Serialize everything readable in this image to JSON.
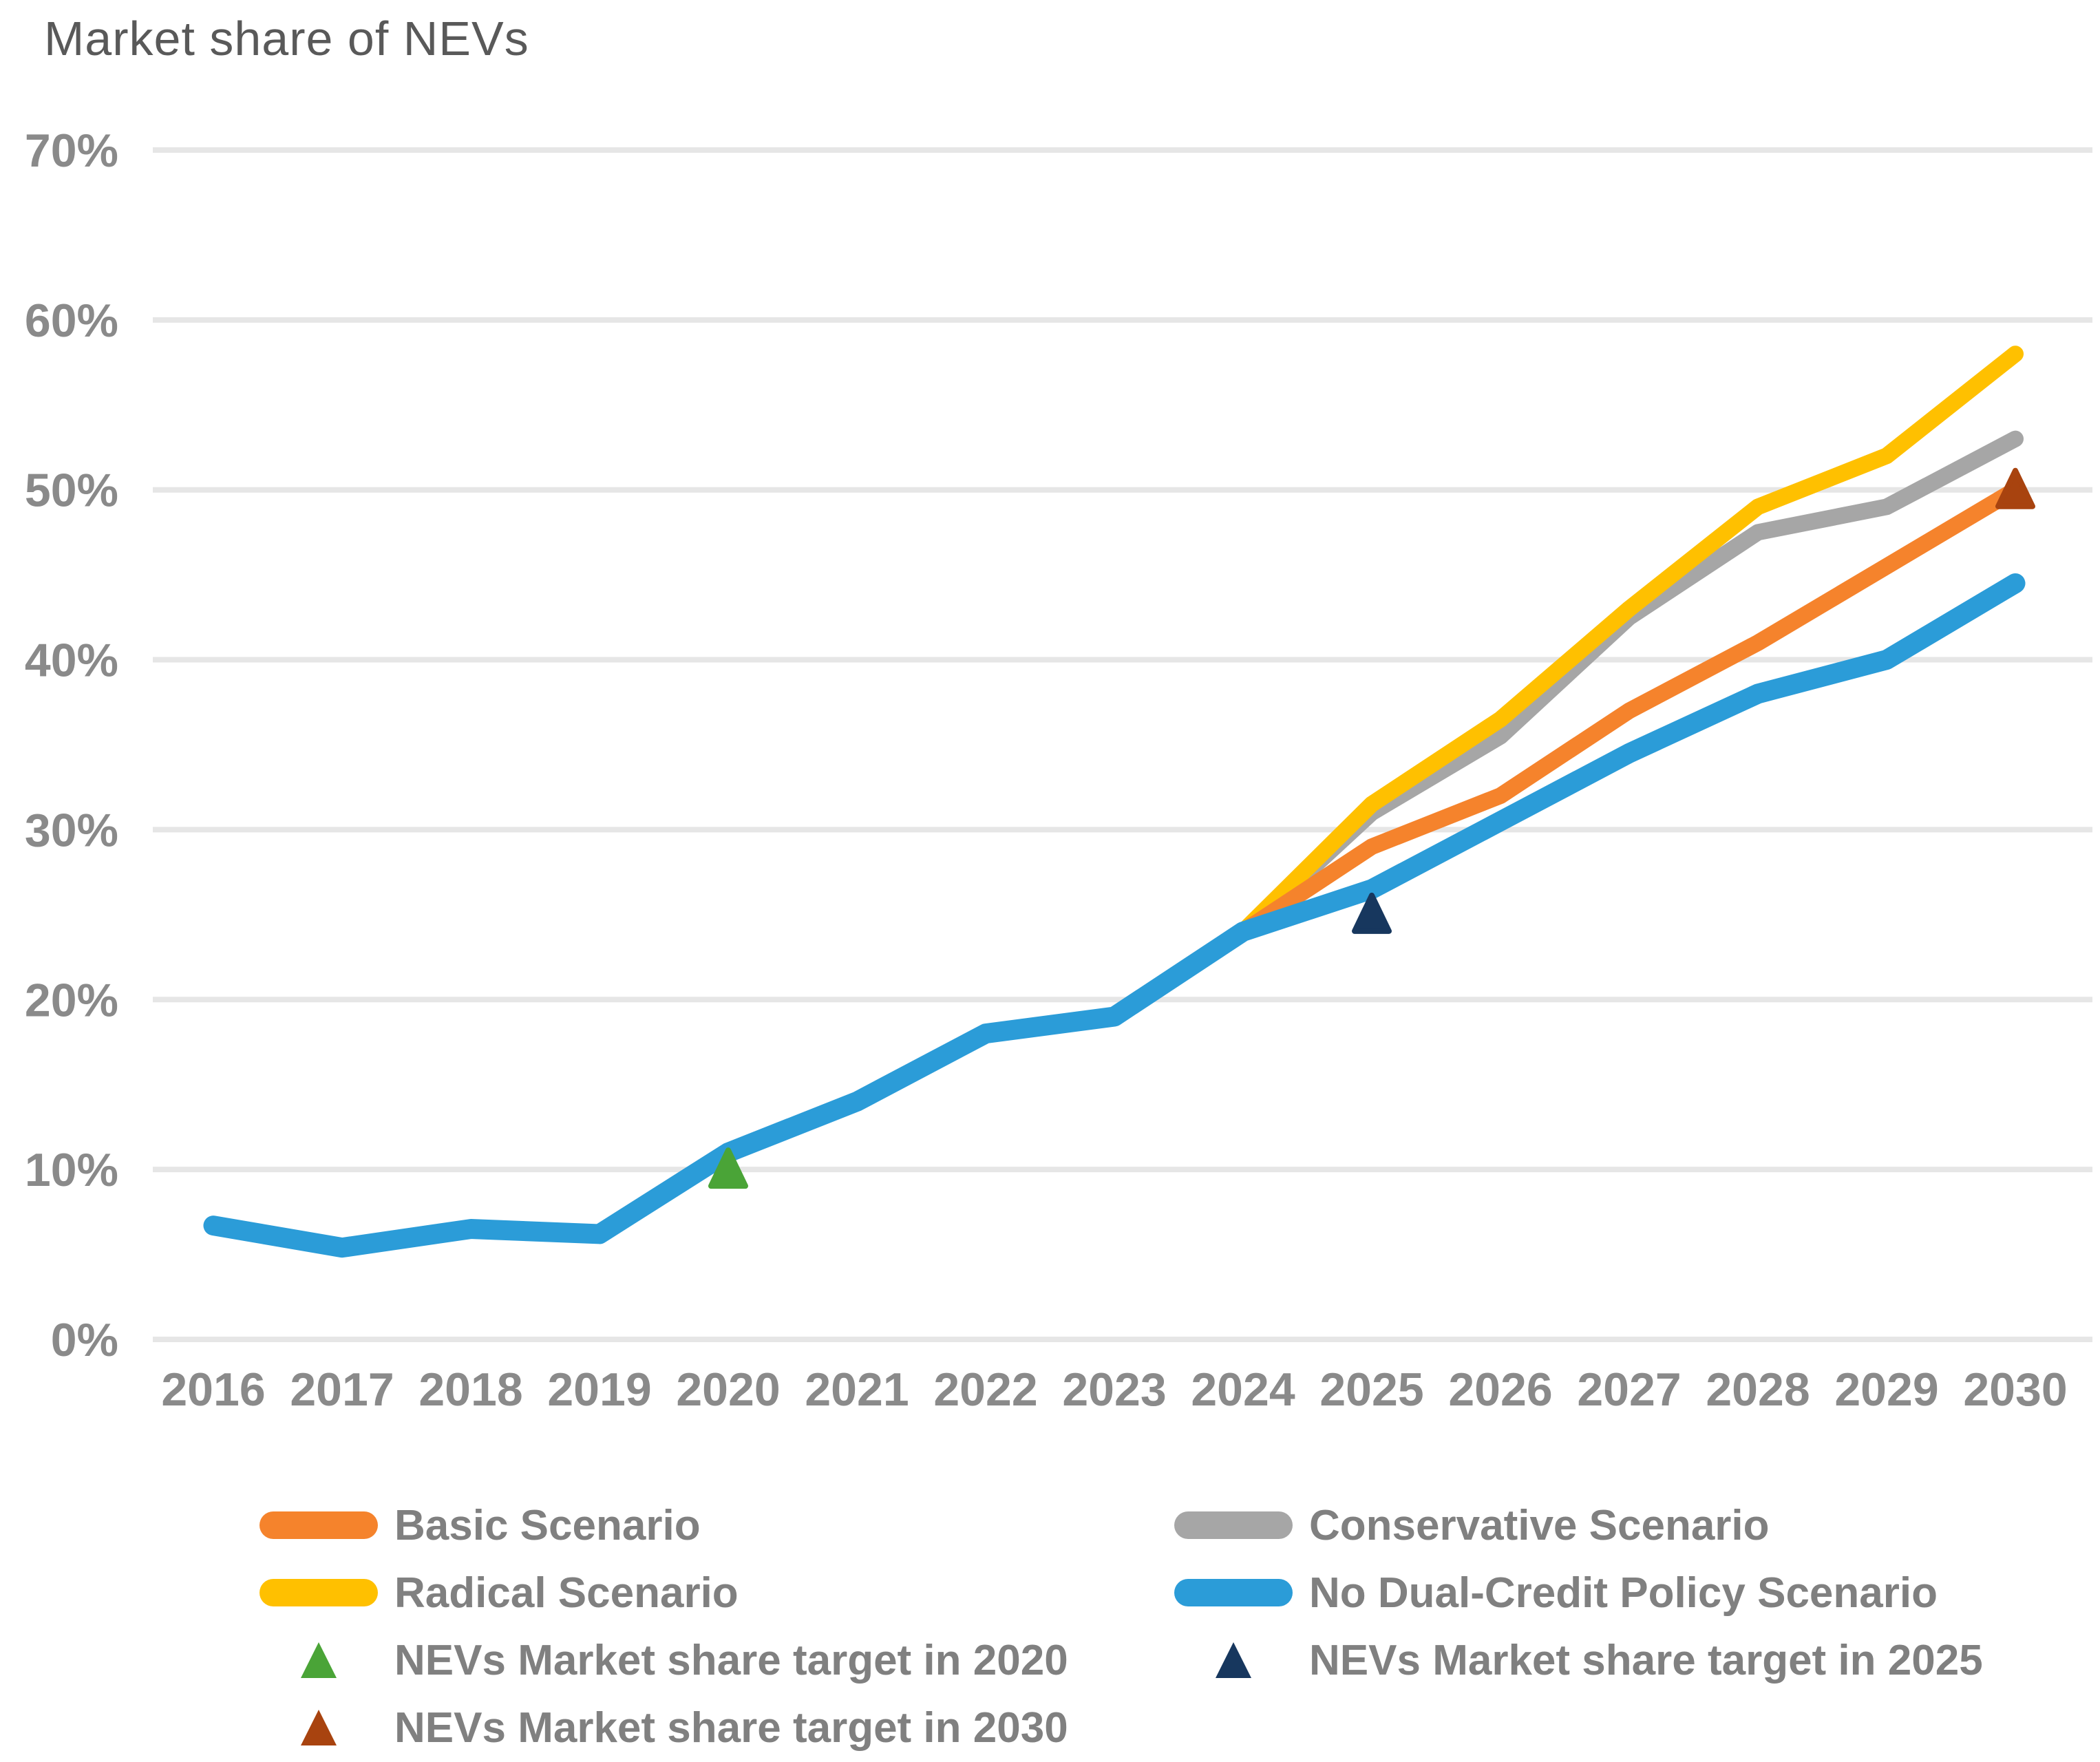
{
  "chart_data": {
    "type": "line",
    "title": "Market share of NEVs",
    "x": [
      2016,
      2017,
      2018,
      2019,
      2020,
      2021,
      2022,
      2023,
      2024,
      2025,
      2026,
      2027,
      2028,
      2029,
      2030
    ],
    "x_tick_labels": [
      "2016",
      "2017",
      "2018",
      "2019",
      "2020",
      "2021",
      "2022",
      "2023",
      "2024",
      "2025",
      "2026",
      "2027",
      "2028",
      "2029",
      "2030"
    ],
    "ylabel": "Market share of NEVs",
    "ylim": [
      0,
      70
    ],
    "ytick_step": 10,
    "y_tick_labels": [
      "0%",
      "10%",
      "20%",
      "30%",
      "40%",
      "50%",
      "60%",
      "70%"
    ],
    "grid": "horizontal-only",
    "gridline_color": "#e6e6e6",
    "axis_text_color": "#8a8a8a",
    "legend_position": "bottom-two-columns",
    "series": [
      {
        "name": "Basic Scenario",
        "color": "#F5832C",
        "values": [
          6.7,
          5.4,
          6.5,
          6.2,
          11,
          14,
          18,
          19,
          24,
          29,
          32,
          37,
          41,
          45.5,
          50
        ]
      },
      {
        "name": "Conservative Scenario",
        "color": "#A6A6A6",
        "values": [
          6.7,
          5.4,
          6.5,
          6.2,
          11,
          14,
          18,
          19,
          24,
          31,
          35.5,
          42.5,
          47.5,
          49,
          53
        ]
      },
      {
        "name": "Radical Scenario",
        "color": "#FFC000",
        "values": [
          6.7,
          5.4,
          6.5,
          6.2,
          11,
          14,
          18,
          19,
          24,
          31.5,
          36.5,
          43,
          49,
          52,
          58
        ]
      },
      {
        "name": "No Dual-Credit Policy Scenario",
        "color": "#2B9CD8",
        "values": [
          6.7,
          5.4,
          6.5,
          6.2,
          11,
          14,
          18,
          19,
          24,
          26.5,
          30.5,
          34.5,
          38,
          40,
          44.5
        ]
      }
    ],
    "targets": [
      {
        "label": "NEVs Market share target in 2020",
        "year": 2020,
        "value": 10,
        "color": "#4AA437"
      },
      {
        "label": "NEVs Market share target in 2025",
        "year": 2025,
        "value": 25,
        "color": "#17375E"
      },
      {
        "label": "NEVs Market share target in 2030",
        "year": 2030,
        "value": 50,
        "color": "#A8430F"
      }
    ]
  }
}
